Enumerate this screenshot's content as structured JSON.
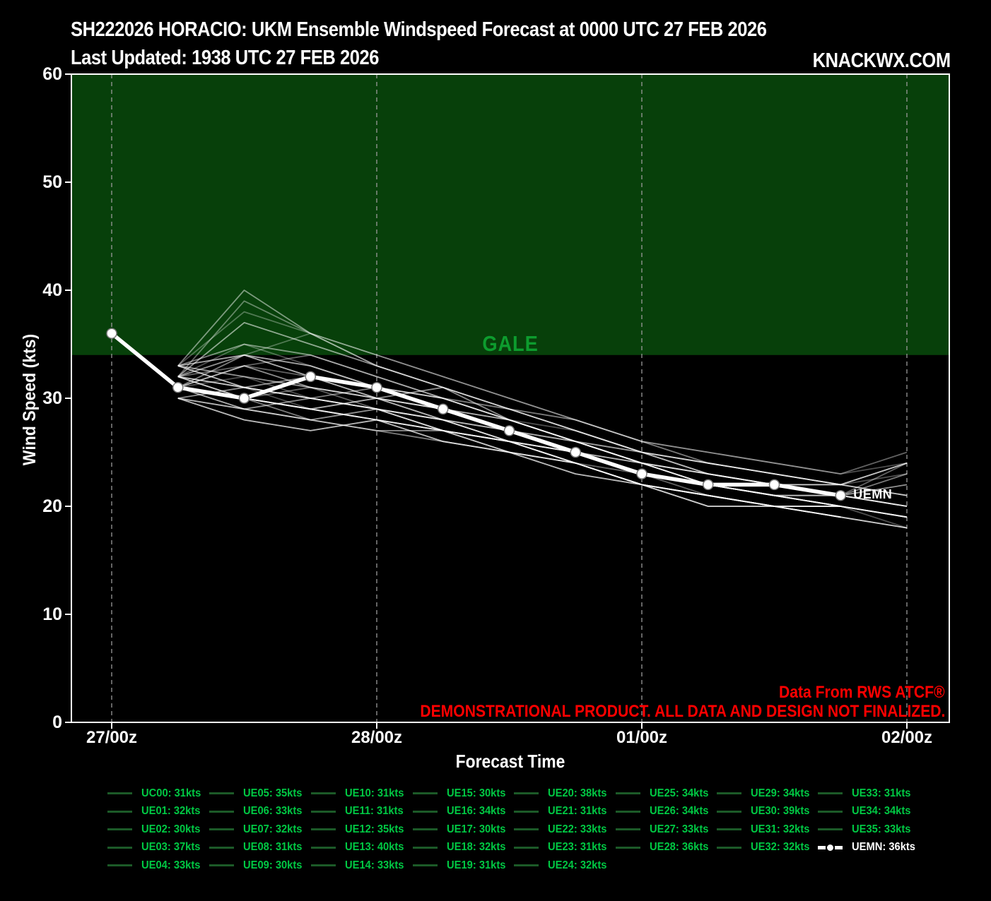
{
  "header": {
    "title": "SH222026 HORACIO: UKM Ensemble Windspeed Forecast at 0000 UTC 27 FEB 2026",
    "subtitle": "Last Updated: 1938 UTC 27 FEB 2026",
    "brand": "KNACKWX.COM"
  },
  "annotations": {
    "gale_label": "GALE",
    "mean_label": "UEMN",
    "credit": "Data From RWS ATCF®",
    "disclaimer": "DEMONSTRATIONAL PRODUCT. ALL DATA AND DESIGN NOT FINALIZED."
  },
  "colors": {
    "background": "#000000",
    "gale_fill": "#07400a",
    "gale_text": "#0d9c2e",
    "legend_text": "#00c843",
    "legend_swatch": "#1c5a28",
    "alert_red": "#ff0000",
    "mean_line": "#ffffff",
    "member_line": "#ffffff",
    "grid": "#999999",
    "axis": "#ffffff"
  },
  "chart_data": {
    "type": "line",
    "xlabel": "Forecast Time",
    "ylabel": "Wind Speed (kts)",
    "ylim": [
      0,
      60
    ],
    "yticks": [
      0,
      10,
      20,
      30,
      40,
      50,
      60
    ],
    "xticks": [
      {
        "label": "27/00z",
        "hour": 0
      },
      {
        "label": "28/00z",
        "hour": 24
      },
      {
        "label": "01/00z",
        "hour": 48
      },
      {
        "label": "02/00z",
        "hour": 72
      }
    ],
    "step_hours": 6,
    "gale_threshold_kts": 34,
    "grid": "vertical-dashed",
    "legend_position": "bottom",
    "mean": {
      "id": "UEMN",
      "legend_label": "UEMN: 36kts",
      "start_hour": 0,
      "values": [
        36,
        31,
        30,
        32,
        31,
        29,
        27,
        25,
        23,
        22,
        22,
        21
      ]
    },
    "ensemble_members": [
      {
        "id": "UC00",
        "legend_label": "UC00: 31kts",
        "start_hour": 6,
        "values": [
          31,
          30,
          29,
          30,
          29,
          27,
          25,
          23,
          22,
          21,
          21,
          22
        ]
      },
      {
        "id": "UE01",
        "legend_label": "UE01: 32kts",
        "start_hour": 6,
        "values": [
          32,
          31,
          30,
          31,
          30,
          28,
          26,
          24,
          22,
          22,
          21,
          20
        ]
      },
      {
        "id": "UE02",
        "legend_label": "UE02: 30kts",
        "start_hour": 6,
        "values": [
          30,
          29,
          28,
          29,
          28,
          26,
          25,
          23,
          21,
          20,
          20,
          19
        ]
      },
      {
        "id": "UE03",
        "legend_label": "UE03: 37kts",
        "start_hour": 6,
        "values": [
          32,
          37,
          35,
          33,
          31,
          29,
          27,
          25,
          24,
          23,
          22,
          24
        ]
      },
      {
        "id": "UE04",
        "legend_label": "UE04: 33kts",
        "start_hour": 6,
        "values": [
          33,
          32,
          31,
          30,
          29,
          28,
          26,
          24,
          23,
          22,
          21,
          20
        ]
      },
      {
        "id": "UE05",
        "legend_label": "UE05: 35kts",
        "start_hour": 6,
        "values": [
          33,
          35,
          34,
          32,
          30,
          29,
          27,
          25,
          24,
          23,
          22,
          21
        ]
      },
      {
        "id": "UE06",
        "legend_label": "UE06: 33kts",
        "start_hour": 6,
        "values": [
          31,
          33,
          32,
          31,
          29,
          28,
          26,
          25,
          23,
          22,
          21,
          20
        ]
      },
      {
        "id": "UE07",
        "legend_label": "UE07: 32kts",
        "start_hour": 6,
        "values": [
          32,
          30,
          29,
          30,
          31,
          28,
          26,
          24,
          22,
          21,
          20,
          19
        ]
      },
      {
        "id": "UE08",
        "legend_label": "UE08: 31kts",
        "start_hour": 6,
        "values": [
          31,
          29,
          28,
          29,
          28,
          27,
          25,
          23,
          22,
          21,
          20,
          18
        ]
      },
      {
        "id": "UE09",
        "legend_label": "UE09: 30kts",
        "start_hour": 6,
        "values": [
          30,
          28,
          27,
          28,
          27,
          26,
          24,
          22,
          21,
          20,
          20
        ]
      },
      {
        "id": "UE10",
        "legend_label": "UE10: 31kts",
        "start_hour": 6,
        "values": [
          31,
          30,
          31,
          29,
          28,
          26,
          24,
          23,
          22,
          21,
          20
        ]
      },
      {
        "id": "UE11",
        "legend_label": "UE11: 31kts",
        "start_hour": 6,
        "values": [
          30,
          31,
          30,
          29,
          27,
          26,
          25,
          23,
          22,
          21,
          20,
          19
        ]
      },
      {
        "id": "UE12",
        "legend_label": "UE12: 35kts",
        "start_hour": 6,
        "values": [
          32,
          35,
          33,
          31,
          30,
          28,
          27,
          25,
          23,
          22,
          22,
          23
        ]
      },
      {
        "id": "UE13",
        "legend_label": "UE13: 40kts",
        "start_hour": 6,
        "values": [
          33,
          40,
          36,
          33,
          31,
          29,
          28,
          26,
          24,
          23,
          22,
          24
        ]
      },
      {
        "id": "UE14",
        "legend_label": "UE14: 33kts",
        "start_hour": 6,
        "values": [
          33,
          31,
          30,
          29,
          28,
          27,
          25,
          24,
          22,
          21,
          20,
          19
        ]
      },
      {
        "id": "UE15",
        "legend_label": "UE15: 30kts",
        "start_hour": 6,
        "values": [
          30,
          29,
          28,
          27,
          27,
          26,
          24,
          22,
          21,
          20,
          19,
          18
        ]
      },
      {
        "id": "UE16",
        "legend_label": "UE16: 34kts",
        "start_hour": 6,
        "values": [
          32,
          34,
          33,
          31,
          29,
          28,
          26,
          24,
          23,
          22,
          21,
          20
        ]
      },
      {
        "id": "UE17",
        "legend_label": "UE17: 30kts",
        "start_hour": 6,
        "values": [
          30,
          28,
          27,
          28,
          26,
          25,
          24,
          22,
          20,
          20,
          19
        ]
      },
      {
        "id": "UE18",
        "legend_label": "UE18: 32kts",
        "start_hour": 6,
        "values": [
          32,
          31,
          30,
          29,
          28,
          26,
          25,
          23,
          22,
          21,
          20
        ]
      },
      {
        "id": "UE19",
        "legend_label": "UE19: 31kts",
        "start_hour": 6,
        "values": [
          31,
          30,
          29,
          28,
          27,
          25,
          24,
          22,
          21,
          20,
          20
        ]
      },
      {
        "id": "UE20",
        "legend_label": "UE20: 38kts",
        "start_hour": 6,
        "values": [
          33,
          38,
          36,
          34,
          32,
          30,
          28,
          26,
          25,
          24,
          23,
          24
        ]
      },
      {
        "id": "UE21",
        "legend_label": "UE21: 31kts",
        "start_hour": 6,
        "values": [
          31,
          30,
          29,
          28,
          26,
          25,
          23,
          22,
          21,
          20,
          19
        ]
      },
      {
        "id": "UE22",
        "legend_label": "UE22: 33kts",
        "start_hour": 6,
        "values": [
          33,
          32,
          31,
          30,
          28,
          27,
          25,
          23,
          22,
          21,
          21,
          22
        ]
      },
      {
        "id": "UE23",
        "legend_label": "UE23: 31kts",
        "start_hour": 6,
        "values": [
          31,
          29,
          30,
          29,
          27,
          26,
          24,
          22,
          21,
          20,
          20
        ]
      },
      {
        "id": "UE24",
        "legend_label": "UE24: 32kts",
        "start_hour": 6,
        "values": [
          32,
          31,
          29,
          28,
          27,
          26,
          24,
          22,
          20,
          20
        ]
      },
      {
        "id": "UE25",
        "legend_label": "UE25: 34kts",
        "start_hour": 6,
        "values": [
          33,
          34,
          32,
          31,
          29,
          27,
          26,
          24,
          23,
          22,
          21,
          23
        ]
      },
      {
        "id": "UE26",
        "legend_label": "UE26: 34kts",
        "start_hour": 6,
        "values": [
          32,
          33,
          34,
          32,
          30,
          28,
          26,
          25,
          23,
          22,
          22,
          21
        ]
      },
      {
        "id": "UE27",
        "legend_label": "UE27: 33kts",
        "start_hour": 6,
        "values": [
          33,
          31,
          32,
          30,
          29,
          27,
          25,
          24,
          22,
          22,
          22
        ]
      },
      {
        "id": "UE28",
        "legend_label": "UE28: 36kts",
        "start_hour": 6,
        "values": [
          33,
          34,
          36,
          33,
          31,
          29,
          27,
          25,
          24,
          23,
          22,
          21
        ]
      },
      {
        "id": "UE29",
        "legend_label": "UE29: 34kts",
        "start_hour": 6,
        "values": [
          31,
          34,
          33,
          31,
          30,
          28,
          26,
          24,
          23,
          22,
          21,
          20
        ]
      },
      {
        "id": "UE30",
        "legend_label": "UE30: 39kts",
        "start_hour": 6,
        "values": [
          32,
          39,
          36,
          34,
          32,
          30,
          28,
          26,
          25,
          24,
          23,
          25
        ]
      },
      {
        "id": "UE31",
        "legend_label": "UE31: 32kts",
        "start_hour": 6,
        "values": [
          32,
          30,
          29,
          28,
          27,
          25,
          24,
          22,
          21,
          20,
          19,
          18
        ]
      },
      {
        "id": "UE32",
        "legend_label": "UE32: 32kts",
        "start_hour": 6,
        "values": [
          31,
          32,
          30,
          29,
          27,
          26,
          25,
          23,
          22,
          21,
          20
        ]
      },
      {
        "id": "UE33",
        "legend_label": "UE33: 31kts",
        "start_hour": 6,
        "values": [
          31,
          30,
          28,
          27,
          26,
          25,
          23,
          22,
          20,
          20,
          19
        ]
      },
      {
        "id": "UE34",
        "legend_label": "UE34: 34kts",
        "start_hour": 6,
        "values": [
          32,
          34,
          32,
          30,
          29,
          27,
          26,
          24,
          22,
          21,
          21,
          24
        ]
      },
      {
        "id": "UE35",
        "legend_label": "UE35: 33kts",
        "start_hour": 6,
        "values": [
          31,
          33,
          31,
          30,
          28,
          26,
          25,
          23,
          22,
          21,
          20,
          19
        ]
      }
    ]
  },
  "legend": {
    "column_sizes": [
      5,
      5,
      5,
      5,
      5,
      4,
      4,
      4
    ]
  }
}
